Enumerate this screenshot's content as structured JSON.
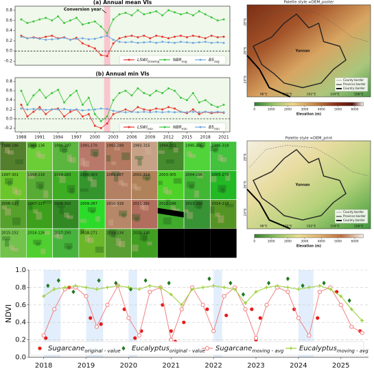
{
  "chart_data": [
    {
      "type": "line",
      "title": "(a) Annual mean VIs",
      "annotation": "Conversion year",
      "background": "#eff8ea",
      "x": [
        1988,
        1989,
        1990,
        1991,
        1992,
        1993,
        1994,
        1995,
        1996,
        1997,
        1998,
        1999,
        2000,
        2001,
        2002,
        2003,
        2004,
        2005,
        2006,
        2007,
        2008,
        2009,
        2010,
        2011,
        2012,
        2013,
        2014,
        2015,
        2016,
        2017,
        2018,
        2019,
        2020,
        2021
      ],
      "xlim": [
        1987,
        2022
      ],
      "shade": [
        2001.5,
        2002.5
      ],
      "hline": 0,
      "ylim": [
        -0.28,
        0.88
      ],
      "yticks": [
        {
          "value": -0.2,
          "label": "-0.2"
        },
        {
          "value": 0,
          "label": "0.0"
        },
        0.2,
        0.4,
        0.6,
        0.8
      ],
      "series": [
        {
          "name": "LSWI",
          "sub": "Growing",
          "color": "#e8312a",
          "marker": "circle",
          "values": [
            0.3,
            0.25,
            0.27,
            0.25,
            0.28,
            0.3,
            0.25,
            0.27,
            0.22,
            0.26,
            0.15,
            0.1,
            0.05,
            -0.08,
            -0.1,
            0.15,
            0.25,
            0.28,
            0.3,
            0.27,
            0.3,
            0.25,
            0.3,
            0.28,
            0.25,
            0.28,
            0.3,
            0.27,
            0.3,
            0.28,
            0.25,
            0.3,
            0.27,
            0.28
          ]
        },
        {
          "name": "NBR",
          "sub": "avg",
          "color": "#3ec43e",
          "marker": "circle",
          "values": [
            0.62,
            0.55,
            0.58,
            0.62,
            0.65,
            0.6,
            0.68,
            0.55,
            0.6,
            0.65,
            0.52,
            0.55,
            0.58,
            0.48,
            0.35,
            0.62,
            0.72,
            0.75,
            0.7,
            0.8,
            0.72,
            0.75,
            0.78,
            0.7,
            0.8,
            0.76,
            0.72,
            0.75,
            0.7,
            0.78,
            0.72,
            0.66,
            0.6,
            0.62
          ]
        },
        {
          "name": "B5",
          "sub": "avg",
          "color": "#6ea6e0",
          "marker": "circle",
          "values": [
            0.28,
            0.25,
            0.26,
            0.24,
            0.22,
            0.23,
            0.24,
            0.26,
            0.22,
            0.24,
            0.25,
            0.23,
            0.24,
            0.27,
            0.3,
            0.22,
            0.18,
            0.17,
            0.18,
            0.16,
            0.17,
            0.18,
            0.16,
            0.18,
            0.17,
            0.16,
            0.18,
            0.17,
            0.16,
            0.17,
            0.18,
            0.16,
            0.17,
            0.16
          ]
        }
      ]
    },
    {
      "type": "line",
      "title": "(b) Annual min VIs",
      "background": "#eff8ea",
      "x": [
        1988,
        1989,
        1990,
        1991,
        1992,
        1993,
        1994,
        1995,
        1996,
        1997,
        1998,
        1999,
        2000,
        2001,
        2002,
        2003,
        2004,
        2005,
        2006,
        2007,
        2008,
        2009,
        2010,
        2011,
        2012,
        2013,
        2014,
        2015,
        2016,
        2017,
        2018,
        2019,
        2020,
        2021
      ],
      "xlim": [
        1987,
        2022
      ],
      "xticks": [
        1988,
        1991,
        1994,
        1997,
        2000,
        2003,
        2006,
        2009,
        2012,
        2015,
        2018,
        2021
      ],
      "shade": [
        2001.5,
        2002.5
      ],
      "hline": 0,
      "ylim": [
        -0.28,
        0.88
      ],
      "yticks": [
        {
          "value": -0.2,
          "label": "-0.2"
        },
        {
          "value": 0,
          "label": "0.0"
        },
        0.2,
        0.4,
        0.6,
        0.8
      ],
      "series": [
        {
          "name": "LSWI",
          "sub": "min",
          "color": "#e8312a",
          "marker": "circle",
          "values": [
            0.3,
            0.05,
            0.15,
            0.25,
            0.1,
            0.2,
            0.22,
            0.05,
            0.15,
            0.2,
            0.05,
            0.1,
            -0.15,
            -0.2,
            -0.1,
            0.1,
            0.15,
            0.2,
            0.15,
            0.25,
            0.2,
            0.18,
            0.22,
            0.2,
            0.25,
            0.22,
            0.15,
            0.12,
            0.2,
            0.1,
            0.15,
            0.12,
            0.14,
            0.13
          ]
        },
        {
          "name": "NBR",
          "sub": "min",
          "color": "#3ec43e",
          "marker": "circle",
          "values": [
            0.6,
            0.3,
            0.5,
            0.62,
            0.45,
            0.55,
            0.62,
            0.35,
            0.5,
            0.6,
            0.3,
            0.45,
            0.1,
            -0.05,
            0.05,
            0.4,
            0.55,
            0.6,
            0.5,
            0.65,
            0.55,
            0.5,
            0.6,
            0.55,
            0.65,
            0.6,
            0.45,
            0.4,
            0.55,
            0.35,
            0.4,
            0.3,
            0.25,
            0.3
          ]
        },
        {
          "name": "B5",
          "sub": "min",
          "color": "#6ea6e0",
          "marker": "circle",
          "values": [
            0.22,
            0.2,
            0.21,
            0.2,
            0.19,
            0.2,
            0.2,
            0.21,
            0.19,
            0.2,
            0.18,
            0.19,
            0.2,
            0.22,
            0.21,
            0.17,
            0.15,
            0.14,
            0.15,
            0.14,
            0.15,
            0.14,
            0.15,
            0.14,
            0.15,
            0.14,
            0.15,
            0.14,
            0.15,
            0.14,
            0.15,
            0.14,
            0.15,
            0.14
          ]
        }
      ]
    },
    {
      "type": "line",
      "y_label": "NDVI",
      "background": "#ffffff",
      "grid": true,
      "x": [
        2018.0,
        2018.25,
        2018.5,
        2018.75,
        2019.0,
        2019.25,
        2019.5,
        2019.75,
        2020.0,
        2020.25,
        2020.5,
        2020.75,
        2021.0,
        2021.25,
        2021.5,
        2021.75,
        2022.0,
        2022.25,
        2022.5,
        2022.75,
        2023.0,
        2023.25,
        2023.5,
        2023.75,
        2024.0,
        2024.25,
        2024.5,
        2024.75,
        2025.0,
        2025.25,
        2025.5
      ],
      "xlim": [
        2017.65,
        2025.65
      ],
      "xticks": [
        2018,
        2019,
        2020,
        2021,
        2022,
        2023,
        2024,
        2025
      ],
      "shades": [
        [
          2018.0,
          2018.4
        ],
        [
          2019.0,
          2019.4
        ],
        [
          2020.0,
          2020.2
        ],
        [
          2022.0,
          2022.2
        ],
        [
          2024.0,
          2024.35
        ]
      ],
      "ylim": [
        0,
        1
      ],
      "yticks": [
        {
          "value": 0,
          "label": "0.0"
        },
        0.2,
        0.4,
        0.6,
        0.8,
        {
          "value": 1,
          "label": "1.0"
        }
      ],
      "series": [
        {
          "name": "Sugarcane",
          "sub": "original - value",
          "color": "#e8191a",
          "marker": "circle",
          "mode": "markers",
          "x": [
            2018.05,
            2018.6,
            2019.1,
            2019.35,
            2019.9,
            2020.15,
            2020.3,
            2020.8,
            2021.0,
            2021.1,
            2021.3,
            2021.85,
            2022.0,
            2022.3,
            2022.9,
            2023.0,
            2023.1,
            2023.9,
            2024.25,
            2024.45,
            2024.9,
            2025.0,
            2025.45
          ],
          "values": [
            0.22,
            0.8,
            0.45,
            0.38,
            0.55,
            0.22,
            0.3,
            0.6,
            0.3,
            0.18,
            0.4,
            0.55,
            0.3,
            0.48,
            0.55,
            0.2,
            0.45,
            0.55,
            0.25,
            0.45,
            0.75,
            0.6,
            0.3
          ]
        },
        {
          "name": "Eucalyptus",
          "sub": "original - value",
          "color": "#1f7a1f",
          "marker": "diamond",
          "mode": "markers",
          "x": [
            2018.1,
            2018.35,
            2018.7,
            2019.3,
            2019.7,
            2020.05,
            2020.4,
            2020.95,
            2021.5,
            2021.9,
            2022.4,
            2022.7,
            2023.3,
            2023.75,
            2024.1,
            2024.6,
            2025.2
          ],
          "values": [
            0.82,
            0.88,
            0.75,
            0.88,
            0.85,
            0.78,
            0.88,
            0.85,
            0.8,
            0.9,
            0.85,
            0.72,
            0.85,
            0.9,
            0.82,
            0.85,
            0.65
          ]
        },
        {
          "name": "Sugarcane",
          "sub": "moving - avg",
          "color": "#f08080",
          "marker": "open-circle",
          "mode": "lines+markers",
          "values": [
            0.25,
            0.55,
            0.78,
            0.8,
            0.7,
            0.35,
            0.6,
            0.82,
            0.45,
            0.25,
            0.75,
            0.8,
            0.2,
            0.55,
            0.8,
            0.6,
            0.3,
            0.7,
            0.8,
            0.55,
            0.22,
            0.6,
            0.8,
            0.75,
            0.45,
            0.25,
            0.75,
            0.8,
            0.6,
            0.35,
            0.28
          ]
        },
        {
          "name": "Eucalyptus",
          "sub": "moving - avg",
          "color": "#9acd32",
          "marker": "plus",
          "mode": "lines+markers",
          "values": [
            0.7,
            0.78,
            0.8,
            0.82,
            0.8,
            0.78,
            0.8,
            0.82,
            0.8,
            0.78,
            0.82,
            0.8,
            0.72,
            0.6,
            0.78,
            0.8,
            0.82,
            0.8,
            0.78,
            0.62,
            0.75,
            0.8,
            0.82,
            0.8,
            0.78,
            0.8,
            0.82,
            0.78,
            0.7,
            0.55,
            0.42
          ]
        }
      ]
    }
  ],
  "tiles": [
    "1988-186",
    "1989-136",
    "1990-297",
    "1991-170",
    "1992-289",
    "1993-315",
    "1994-102",
    "1995-205",
    "1996-318",
    "1997-301",
    "1998-216",
    "1999-283",
    "2000-303",
    "2001-287",
    "2002-319",
    "2003-305",
    "2004-296",
    "2005-278",
    "2006-127",
    "2007-127",
    "2008-302",
    "2009-287",
    "2010-318",
    "2011-291",
    "2012-296",
    "2013-250",
    "2014-118",
    "2015-152",
    "2016-126",
    "2017-293",
    "2018-271",
    "2019-134",
    "2020-130"
  ],
  "maps": [
    {
      "title": "Palette style =DEM_poster",
      "colorbar_label": "Elevation (m)",
      "colorbar_lim": [
        0,
        6500
      ],
      "colorbar_ticks": [
        0,
        1000,
        2000,
        3000,
        4000,
        5000,
        6000
      ],
      "lon_labels": [
        "98°E",
        "100°E",
        "102°E",
        "104°E",
        "106°E"
      ],
      "lat_labels": [
        "28°N",
        "26°N",
        "24°N"
      ],
      "place": "Yunnan",
      "legend": [
        "County border",
        "Province border",
        "Country border"
      ]
    },
    {
      "title": "Palette style =DEM_print",
      "colorbar_label": "Elevation (m)",
      "colorbar_lim": [
        0,
        6500
      ],
      "colorbar_ticks": [
        0,
        1000,
        2000,
        3000,
        4000,
        5000,
        6000
      ],
      "lon_labels": [
        "98°E",
        "100°E",
        "102°E",
        "104°E",
        "106°E"
      ],
      "lat_labels": [
        "28°N",
        "26°N",
        "24°N"
      ],
      "place": "Yunnan",
      "legend": [
        "County border",
        "Province border",
        "Country border"
      ]
    }
  ]
}
